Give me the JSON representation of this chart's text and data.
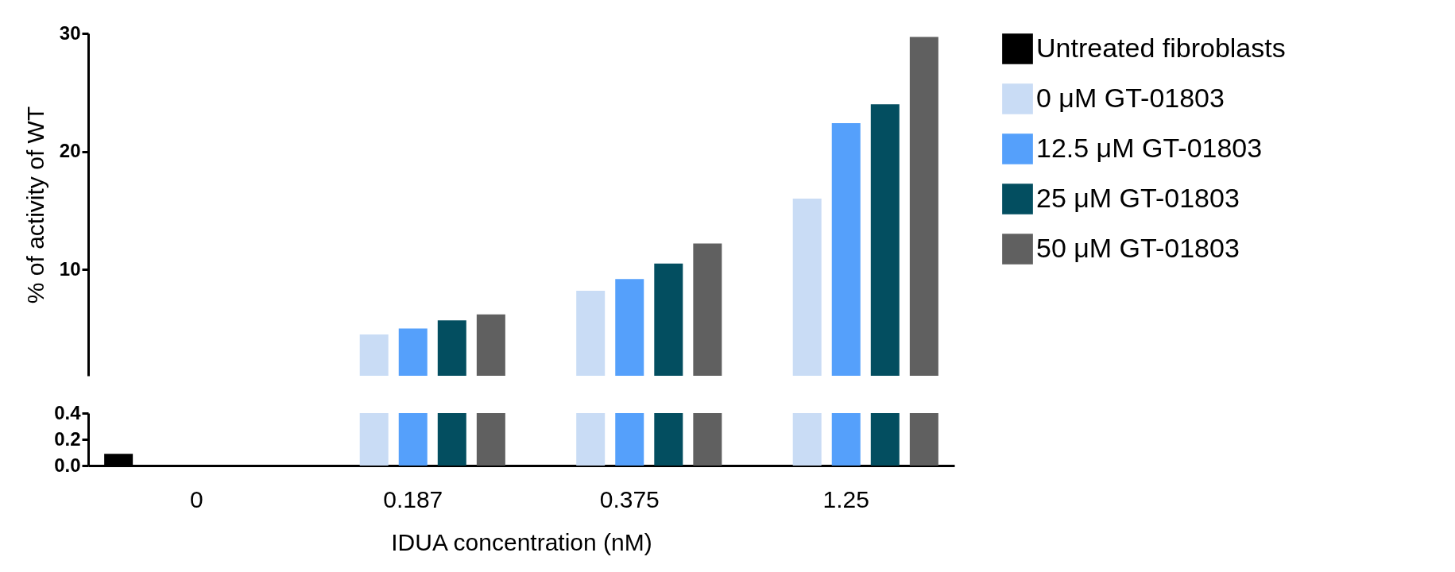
{
  "chart_data": [
    {
      "type": "bar",
      "categories": [
        "0",
        "0.187",
        "0.375",
        "1.25"
      ],
      "ylabel": "% of activity of WT",
      "ylim": [
        1,
        30
      ],
      "yticks": [
        10,
        20,
        30
      ],
      "tick_labels": "y",
      "legend": "right",
      "grid": false,
      "series": [
        {
          "name": "Untreated fibroblasts",
          "color": "#000000",
          "values": [
            null,
            null,
            null,
            null
          ]
        },
        {
          "name": "0 μM GT-01803",
          "color": "#c9dcf5",
          "values": [
            null,
            4.5,
            8.2,
            16.0
          ]
        },
        {
          "name": "12.5 μM GT-01803",
          "color": "#55a0fb",
          "values": [
            null,
            5.0,
            9.2,
            22.4
          ]
        },
        {
          "name": "25 μM GT-01803",
          "color": "#034e60",
          "values": [
            null,
            5.7,
            10.5,
            24.0
          ]
        },
        {
          "name": "50 μM GT-01803",
          "color": "#606060",
          "values": [
            null,
            6.2,
            12.2,
            29.7
          ]
        }
      ]
    },
    {
      "type": "bar",
      "categories": [
        "0",
        "0.187",
        "0.375",
        "1.25"
      ],
      "xlabel": "IDUA concentration (nM)",
      "ylim": [
        0,
        0.4
      ],
      "yticks": [
        {
          "value": 0,
          "label": "0.0"
        },
        {
          "value": 0.2,
          "label": "0.2"
        },
        {
          "value": 0.4,
          "label": "0.4"
        }
      ],
      "grid": false,
      "series": [
        {
          "color": "#000000",
          "values": [
            0.09,
            null,
            null,
            null
          ]
        },
        {
          "color": "#c9dcf5",
          "values": [
            null,
            0.4,
            0.4,
            0.4
          ]
        },
        {
          "color": "#55a0fb",
          "values": [
            null,
            0.4,
            0.4,
            0.4
          ]
        },
        {
          "color": "#034e60",
          "values": [
            null,
            0.4,
            0.4,
            0.4
          ]
        },
        {
          "color": "#606060",
          "values": [
            null,
            0.4,
            0.4,
            0.4
          ]
        }
      ]
    }
  ]
}
